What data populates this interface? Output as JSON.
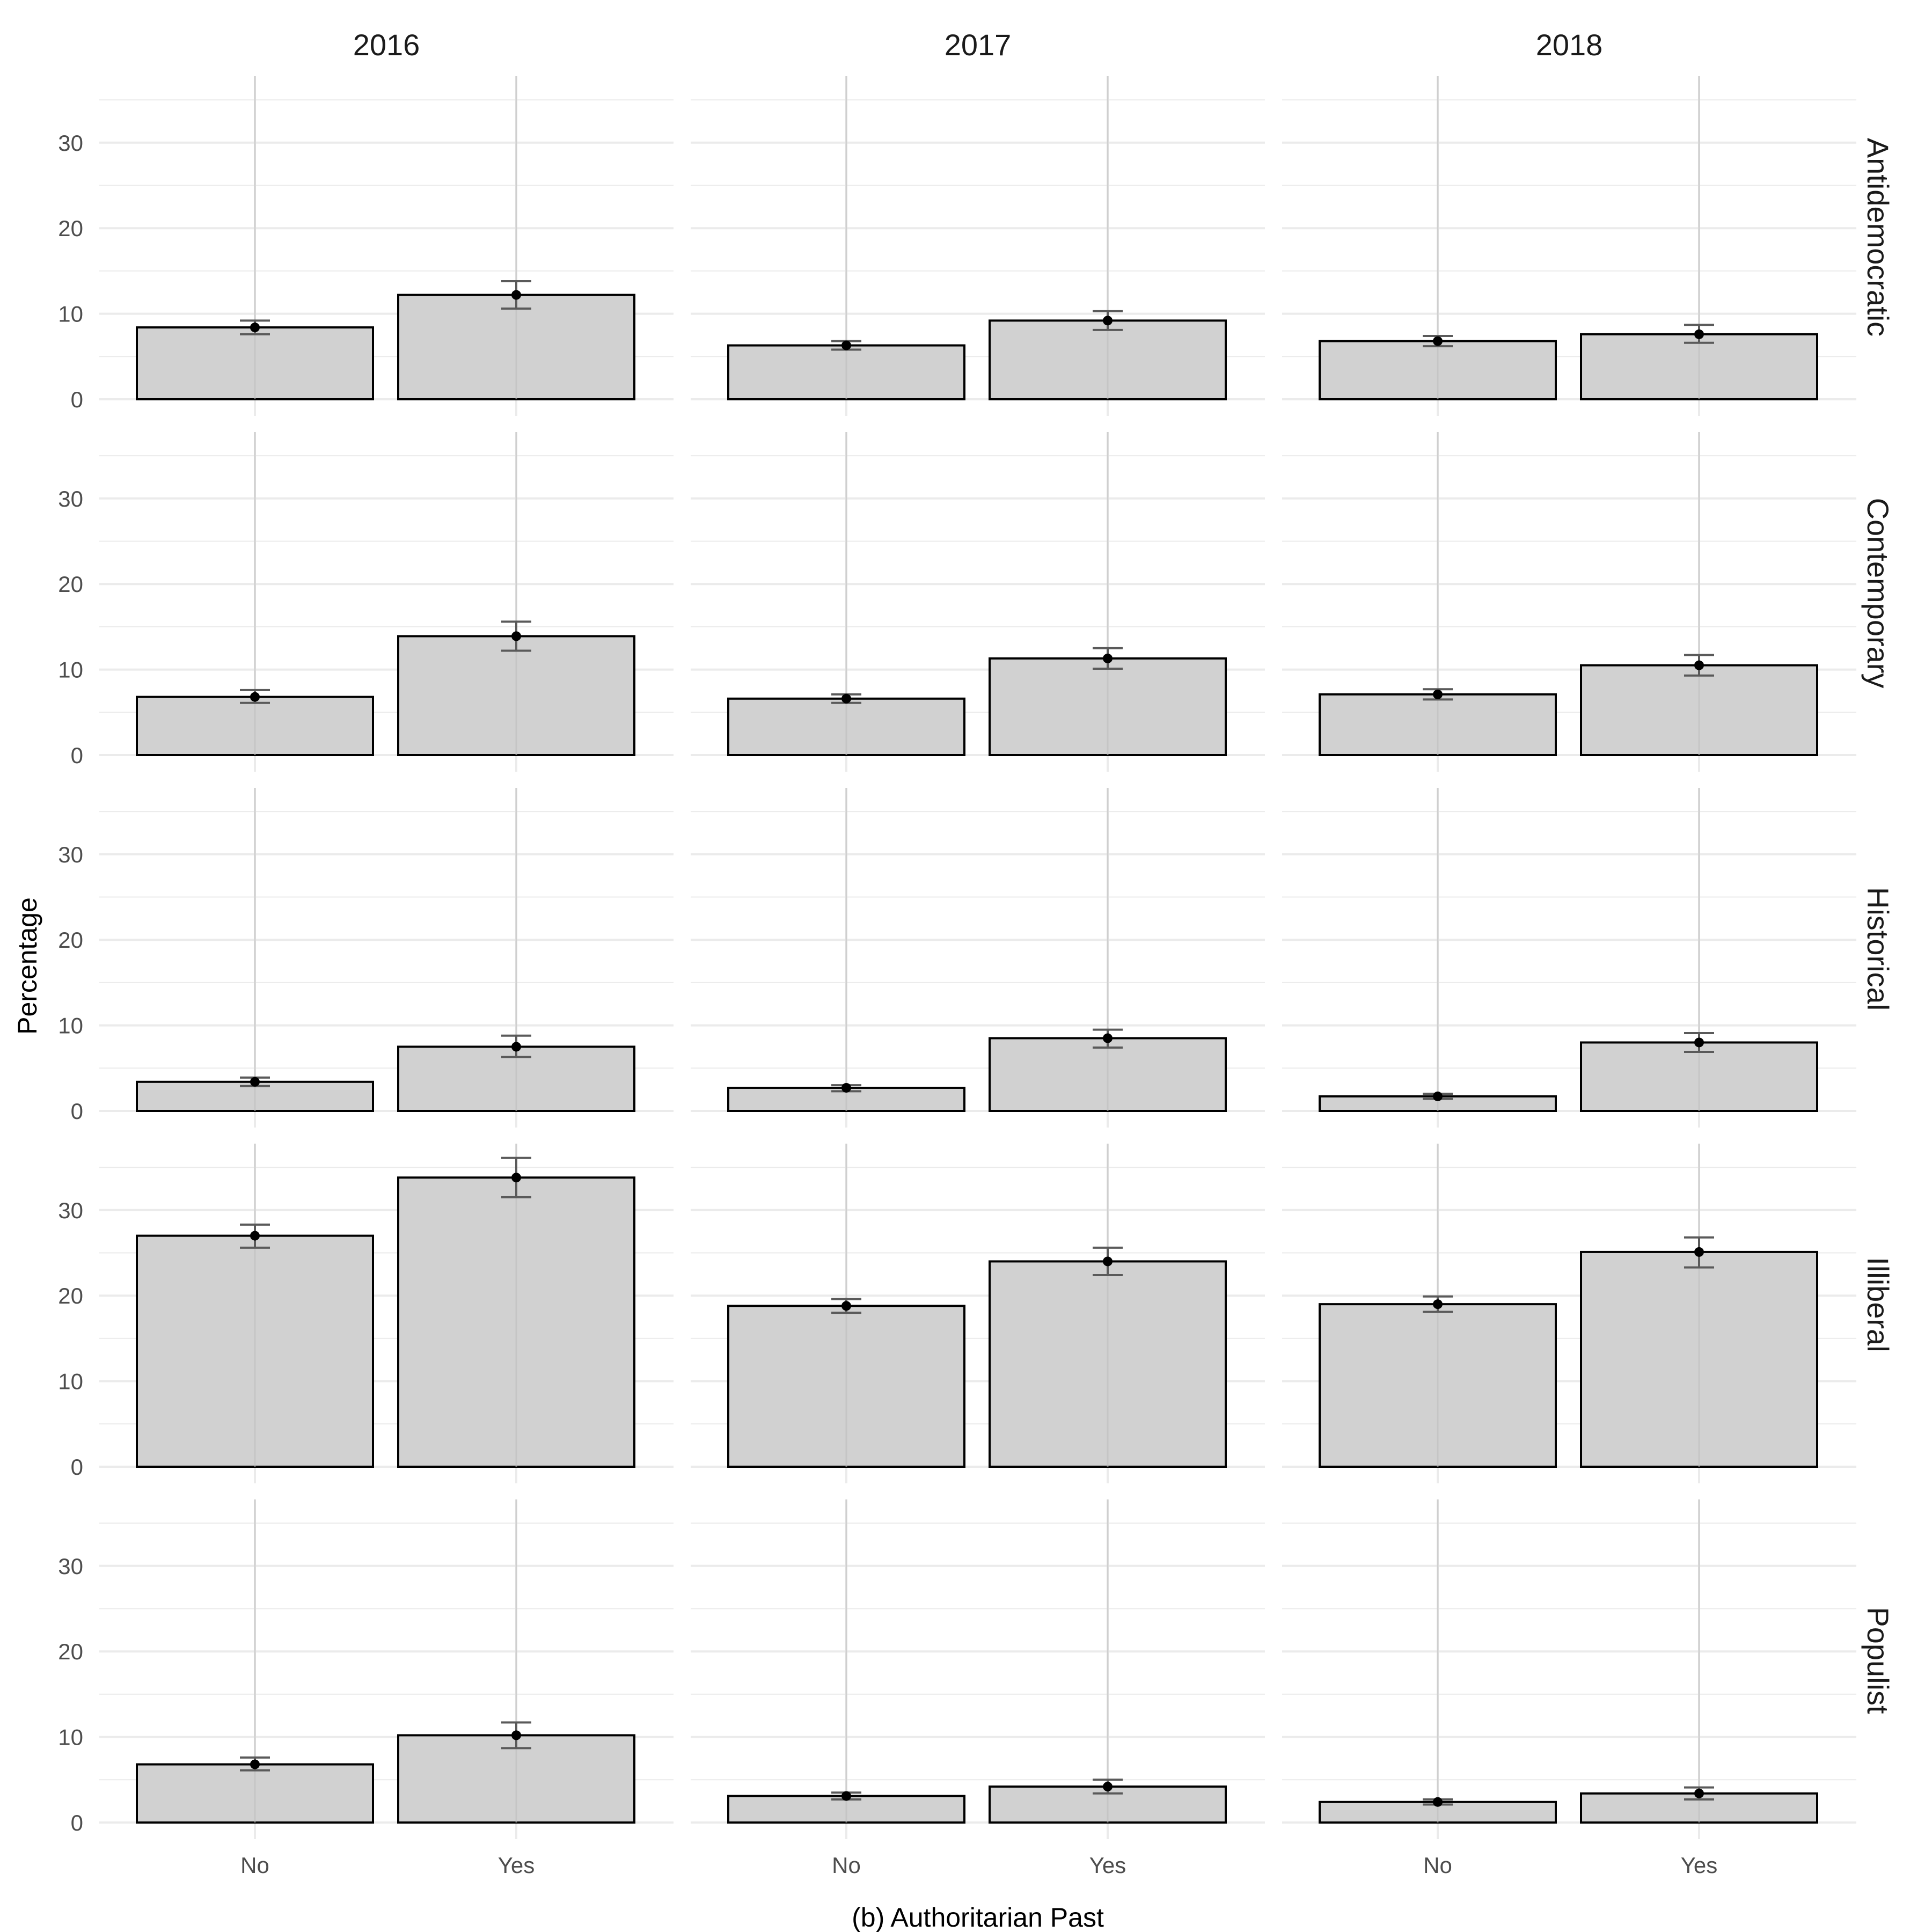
{
  "chart_data": {
    "type": "bar",
    "xlabel": "(b) Authoritarian Past",
    "ylabel": "Percentage",
    "ylim": [
      0,
      37
    ],
    "yticks": [
      0,
      10,
      20,
      30
    ],
    "categories": [
      "No",
      "Yes"
    ],
    "columns": [
      "2016",
      "2017",
      "2018"
    ],
    "rows": [
      "Antidemocratic",
      "Contemporary",
      "Historical",
      "Illiberal",
      "Populist"
    ],
    "grid": true,
    "colors": {
      "bar_fill": "#d1d1d1",
      "bar_stroke": "#000000",
      "errorbar": "#5a5a5a",
      "point": "#000000",
      "grid": "#ebebeb"
    },
    "panels": [
      {
        "row": "Antidemocratic",
        "column": "2016",
        "values": [
          8.4,
          12.2
        ],
        "error_low": [
          7.6,
          10.6
        ],
        "error_high": [
          9.2,
          13.8
        ]
      },
      {
        "row": "Antidemocratic",
        "column": "2017",
        "values": [
          6.3,
          9.2
        ],
        "error_low": [
          5.8,
          8.1
        ],
        "error_high": [
          6.8,
          10.3
        ]
      },
      {
        "row": "Antidemocratic",
        "column": "2018",
        "values": [
          6.8,
          7.6
        ],
        "error_low": [
          6.2,
          6.6
        ],
        "error_high": [
          7.4,
          8.7
        ]
      },
      {
        "row": "Contemporary",
        "column": "2016",
        "values": [
          6.8,
          13.9
        ],
        "error_low": [
          6.1,
          12.2
        ],
        "error_high": [
          7.6,
          15.6
        ]
      },
      {
        "row": "Contemporary",
        "column": "2017",
        "values": [
          6.6,
          11.3
        ],
        "error_low": [
          6.1,
          10.1
        ],
        "error_high": [
          7.1,
          12.5
        ]
      },
      {
        "row": "Contemporary",
        "column": "2018",
        "values": [
          7.1,
          10.5
        ],
        "error_low": [
          6.5,
          9.3
        ],
        "error_high": [
          7.7,
          11.7
        ]
      },
      {
        "row": "Historical",
        "column": "2016",
        "values": [
          3.4,
          7.5
        ],
        "error_low": [
          2.9,
          6.3
        ],
        "error_high": [
          3.9,
          8.8
        ]
      },
      {
        "row": "Historical",
        "column": "2017",
        "values": [
          2.7,
          8.5
        ],
        "error_low": [
          2.3,
          7.4
        ],
        "error_high": [
          3.0,
          9.5
        ]
      },
      {
        "row": "Historical",
        "column": "2018",
        "values": [
          1.7,
          8.0
        ],
        "error_low": [
          1.4,
          6.9
        ],
        "error_high": [
          2.0,
          9.1
        ]
      },
      {
        "row": "Illiberal",
        "column": "2016",
        "values": [
          27.0,
          33.8
        ],
        "error_low": [
          25.6,
          31.5
        ],
        "error_high": [
          28.3,
          36.1
        ]
      },
      {
        "row": "Illiberal",
        "column": "2017",
        "values": [
          18.8,
          24.0
        ],
        "error_low": [
          18.0,
          22.4
        ],
        "error_high": [
          19.6,
          25.6
        ]
      },
      {
        "row": "Illiberal",
        "column": "2018",
        "values": [
          19.0,
          25.1
        ],
        "error_low": [
          18.1,
          23.3
        ],
        "error_high": [
          19.9,
          26.8
        ]
      },
      {
        "row": "Populist",
        "column": "2016",
        "values": [
          6.8,
          10.2
        ],
        "error_low": [
          6.1,
          8.7
        ],
        "error_high": [
          7.6,
          11.7
        ]
      },
      {
        "row": "Populist",
        "column": "2017",
        "values": [
          3.1,
          4.2
        ],
        "error_low": [
          2.7,
          3.4
        ],
        "error_high": [
          3.5,
          5.0
        ]
      },
      {
        "row": "Populist",
        "column": "2018",
        "values": [
          2.4,
          3.4
        ],
        "error_low": [
          2.1,
          2.7
        ],
        "error_high": [
          2.7,
          4.1
        ]
      }
    ]
  }
}
